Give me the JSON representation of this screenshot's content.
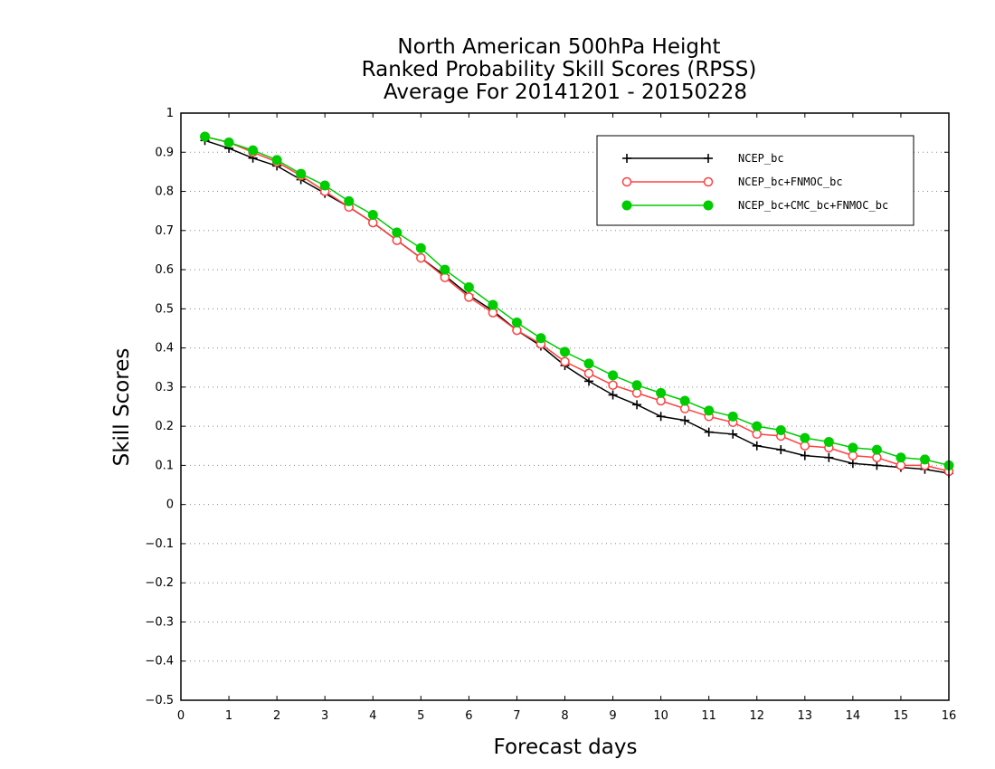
{
  "chart_data": {
    "type": "line",
    "title_lines": [
      "North American 500hPa Height",
      "Ranked Probability Skill Scores (RPSS)",
      "Average For 20141201 - 20150228"
    ],
    "xlabel": "Forecast days",
    "ylabel": "Skill Scores",
    "xlim": [
      0,
      16
    ],
    "ylim": [
      -0.5,
      1
    ],
    "x_ticks": [
      0,
      1,
      2,
      3,
      4,
      5,
      6,
      7,
      8,
      9,
      10,
      11,
      12,
      13,
      14,
      15,
      16
    ],
    "y_ticks": [
      -0.5,
      -0.4,
      -0.3,
      -0.2,
      -0.1,
      0,
      0.1,
      0.2,
      0.3,
      0.4,
      0.5,
      0.6,
      0.7,
      0.8,
      0.9,
      1
    ],
    "y_tick_labels": [
      "−0.5",
      "−0.4",
      "−0.3",
      "−0.2",
      "−0.1",
      "0",
      "0.1",
      "0.2",
      "0.3",
      "0.4",
      "0.5",
      "0.6",
      "0.7",
      "0.8",
      "0.9",
      "1"
    ],
    "grid": "horizontal dotted",
    "legend_position": "top-right",
    "x": [
      0.5,
      1,
      1.5,
      2,
      2.5,
      3,
      3.5,
      4,
      4.5,
      5,
      5.5,
      6,
      6.5,
      7,
      7.5,
      8,
      8.5,
      9,
      9.5,
      10,
      10.5,
      11,
      11.5,
      12,
      12.5,
      13,
      13.5,
      14,
      14.5,
      15,
      15.5,
      16
    ],
    "series": [
      {
        "name": "NCEP_bc",
        "color": "#000000",
        "marker": "plus",
        "values": [
          0.93,
          0.91,
          0.885,
          0.865,
          0.83,
          0.795,
          0.76,
          0.72,
          0.675,
          0.63,
          0.585,
          0.535,
          0.495,
          0.445,
          0.405,
          0.355,
          0.315,
          0.28,
          0.255,
          0.225,
          0.215,
          0.185,
          0.18,
          0.15,
          0.14,
          0.125,
          0.12,
          0.105,
          0.1,
          0.095,
          0.09,
          0.08
        ]
      },
      {
        "name": "NCEP_bc+FNMOC_bc",
        "color": "#ff4040",
        "marker": "open-circle",
        "values": [
          0.94,
          0.925,
          0.9,
          0.875,
          0.84,
          0.8,
          0.76,
          0.72,
          0.675,
          0.63,
          0.58,
          0.53,
          0.49,
          0.445,
          0.41,
          0.365,
          0.335,
          0.305,
          0.285,
          0.265,
          0.245,
          0.225,
          0.21,
          0.18,
          0.175,
          0.15,
          0.145,
          0.125,
          0.12,
          0.1,
          0.1,
          0.085
        ]
      },
      {
        "name": "NCEP_bc+CMC_bc+FNMOC_bc",
        "color": "#00cc00",
        "marker": "filled-circle",
        "values": [
          0.94,
          0.925,
          0.905,
          0.88,
          0.845,
          0.815,
          0.775,
          0.74,
          0.695,
          0.655,
          0.6,
          0.555,
          0.51,
          0.465,
          0.425,
          0.39,
          0.36,
          0.33,
          0.305,
          0.285,
          0.265,
          0.24,
          0.225,
          0.2,
          0.19,
          0.17,
          0.16,
          0.145,
          0.14,
          0.12,
          0.115,
          0.1
        ]
      }
    ]
  }
}
